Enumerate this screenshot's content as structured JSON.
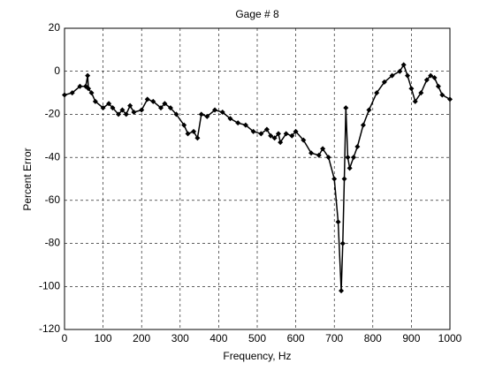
{
  "chart_data": {
    "type": "line",
    "title": "Gage # 8",
    "xlabel": "Frequency, Hz",
    "ylabel": "Percent Error",
    "x": [
      0,
      20,
      40,
      55,
      60,
      62,
      70,
      80,
      100,
      115,
      125,
      140,
      150,
      160,
      170,
      180,
      200,
      215,
      230,
      250,
      260,
      275,
      290,
      310,
      320,
      335,
      345,
      355,
      370,
      390,
      410,
      430,
      450,
      470,
      490,
      510,
      525,
      535,
      545,
      555,
      560,
      575,
      590,
      600,
      620,
      640,
      660,
      670,
      685,
      700,
      710,
      718,
      722,
      726,
      730,
      735,
      740,
      750,
      760,
      775,
      790,
      810,
      830,
      850,
      870,
      880,
      890,
      900,
      910,
      925,
      940,
      950,
      960,
      970,
      980,
      1000
    ],
    "series": [
      {
        "name": "Gage # 8",
        "color": "#000000",
        "values": [
          -11,
          -10,
          -7,
          -7,
          -2,
          -8,
          -10,
          -14,
          -17,
          -15,
          -17,
          -20,
          -18,
          -20,
          -16,
          -19,
          -18,
          -13,
          -14,
          -17,
          -15,
          -17,
          -20,
          -25,
          -29,
          -28,
          -31,
          -20,
          -21,
          -18,
          -19,
          -22,
          -24,
          -25,
          -28,
          -29,
          -27,
          -30,
          -31,
          -29,
          -33,
          -29,
          -30,
          -28,
          -32,
          -38,
          -39,
          -36,
          -40,
          -50,
          -70,
          -102,
          -80,
          -50,
          -17,
          -40,
          -45,
          -40,
          -35,
          -25,
          -18,
          -10,
          -5,
          -2,
          0,
          3,
          -2,
          -8,
          -14,
          -10,
          -4,
          -2,
          -3,
          -7,
          -11,
          -13
        ]
      }
    ],
    "xlim": [
      0,
      1000
    ],
    "ylim": [
      -120,
      20
    ],
    "xticks": [
      0,
      100,
      200,
      300,
      400,
      500,
      600,
      700,
      800,
      900,
      1000
    ],
    "yticks": [
      -120,
      -100,
      -80,
      -60,
      -40,
      -20,
      0,
      20
    ],
    "grid": true
  }
}
